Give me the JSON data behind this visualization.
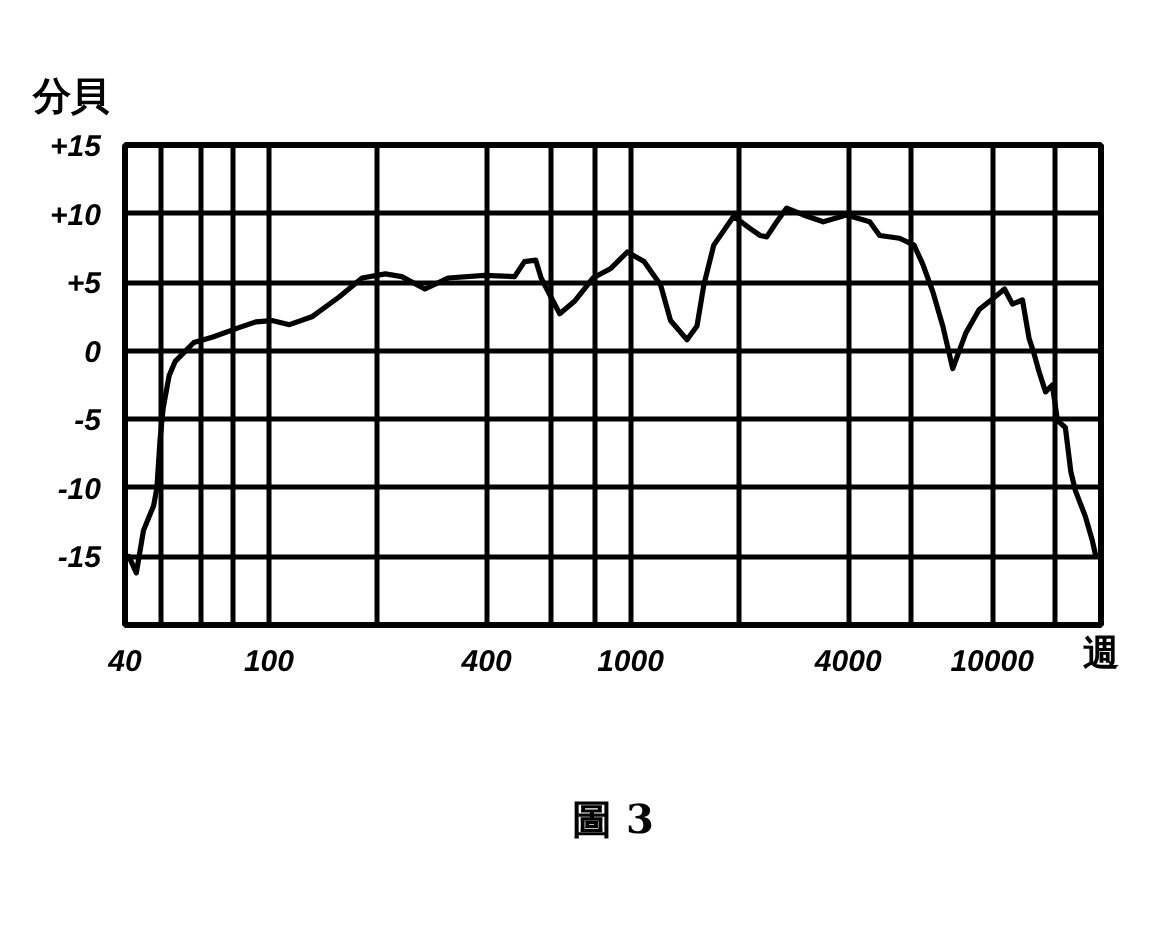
{
  "chart_data": {
    "type": "line",
    "xlabel": "週",
    "ylabel": "分貝",
    "annotations": [
      "圖 3"
    ],
    "log": "x",
    "grid": true,
    "line_style": "solid",
    "xlim": [
      40,
      20000
    ],
    "xticks": [
      40,
      {
        "value": 50,
        "label": null
      },
      {
        "value": 65,
        "label": null
      },
      {
        "value": 80,
        "label": null
      },
      100,
      {
        "value": 200,
        "label": null
      },
      400,
      {
        "value": 600,
        "label": null
      },
      {
        "value": 800,
        "label": null
      },
      1000,
      {
        "value": 2000,
        "label": null
      },
      4000,
      {
        "value": 6000,
        "label": null
      },
      10000,
      {
        "value": 15000,
        "label": null
      }
    ],
    "ylim": [
      -20,
      15
    ],
    "yticks": [
      {
        "value": 15,
        "label": "+15"
      },
      {
        "value": 10,
        "label": "+10"
      },
      {
        "value": 5,
        "label": "+5"
      },
      0,
      -5,
      -10,
      -15
    ],
    "series": [
      {
        "color": "#000000",
        "x": [
          41,
          43,
          45,
          48,
          49,
          50,
          51,
          53,
          55,
          62,
          70,
          83,
          92,
          102,
          114,
          132,
          156,
          181,
          210,
          233,
          270,
          313,
          395,
          478,
          509,
          547,
          566,
          603,
          637,
          700,
          787,
          882,
          980,
          1090,
          1211,
          1290,
          1433,
          1527,
          1595,
          1699,
          1929,
          2143,
          2284,
          2381,
          2537,
          2703,
          3006,
          3412,
          3954,
          4586,
          4886,
          5545,
          6083,
          6432,
          6854,
          7303,
          7780,
          8460,
          9210,
          9940,
          10820,
          11380,
          12130,
          12650,
          13020,
          13470,
          14050,
          14670,
          15160,
          15940,
          16500,
          16990,
          18110,
          18910,
          19350
        ],
        "values": [
          -15.0,
          -16.2,
          -13.1,
          -11.3,
          -10.0,
          -6.5,
          -4.2,
          -1.8,
          -0.8,
          0.6,
          1.0,
          1.7,
          2.1,
          2.2,
          1.9,
          2.5,
          3.9,
          5.3,
          5.6,
          5.4,
          4.5,
          5.3,
          5.5,
          5.4,
          6.5,
          6.6,
          5.3,
          3.9,
          2.7,
          3.6,
          5.3,
          6.0,
          7.2,
          6.5,
          4.8,
          2.2,
          0.8,
          1.8,
          4.8,
          7.7,
          9.8,
          8.9,
          8.4,
          8.3,
          9.4,
          10.4,
          9.9,
          9.4,
          9.9,
          9.4,
          8.4,
          8.2,
          7.7,
          6.3,
          4.3,
          1.8,
          -1.3,
          1.3,
          3.0,
          3.7,
          4.5,
          3.4,
          3.7,
          0.9,
          -0.1,
          -1.5,
          -3.0,
          -2.5,
          -5.1,
          -5.6,
          -8.8,
          -10.2,
          -12.1,
          -13.8,
          -15.0
        ]
      }
    ]
  }
}
